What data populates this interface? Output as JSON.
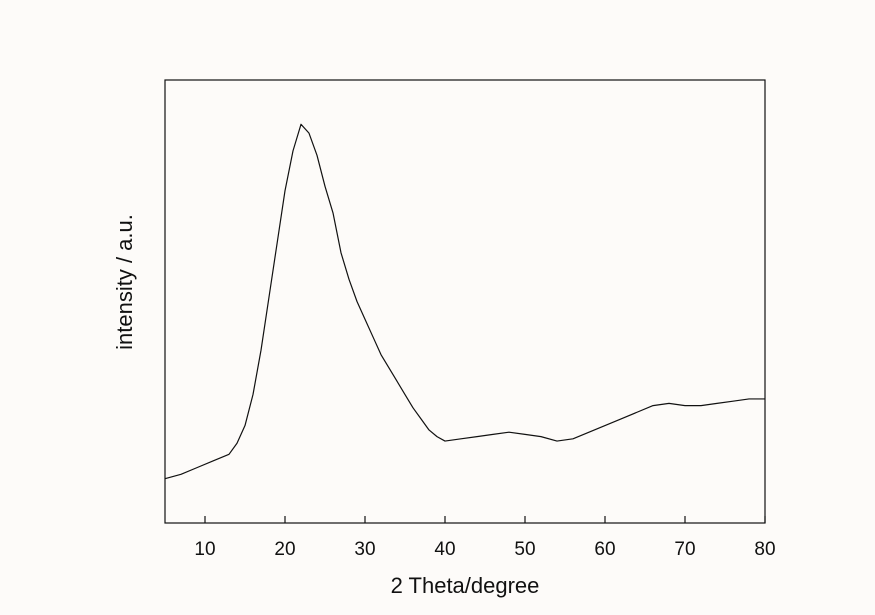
{
  "chart_data": {
    "type": "line",
    "title": "",
    "xlabel": "2 Theta/degree",
    "ylabel": "intensity / a.u.",
    "xlim": [
      5,
      80
    ],
    "ylim": [
      0,
      100
    ],
    "xticks": [
      10,
      20,
      30,
      40,
      50,
      60,
      70,
      80
    ],
    "yticks_shown": false,
    "grid": false,
    "legend": "none",
    "colors": {
      "line": "#111111",
      "axes": "#111111",
      "background": "#fdfbf9"
    },
    "series": [
      {
        "x": [
          5,
          7,
          9,
          11,
          13,
          14,
          15,
          16,
          17,
          18,
          19,
          20,
          21,
          22,
          23,
          24,
          25,
          26,
          27,
          28,
          29,
          30,
          31,
          32,
          33,
          34,
          35,
          36,
          37,
          38,
          39,
          40,
          42,
          44,
          46,
          48,
          50,
          52,
          54,
          56,
          58,
          60,
          62,
          64,
          66,
          68,
          70,
          72,
          74,
          76,
          78,
          80
        ],
        "values": [
          10,
          11,
          12.5,
          14,
          15.5,
          18,
          22,
          29,
          39,
          51,
          63,
          75,
          84,
          90,
          88,
          83,
          76,
          70,
          61,
          55,
          50,
          46,
          42,
          38,
          35,
          32,
          29,
          26,
          23.5,
          21,
          19.5,
          18.5,
          19,
          19.5,
          20,
          20.5,
          20,
          19.5,
          18.5,
          19,
          20.5,
          22,
          23.5,
          25,
          26.5,
          27,
          26.5,
          26.5,
          27,
          27.5,
          28,
          28
        ]
      }
    ]
  }
}
